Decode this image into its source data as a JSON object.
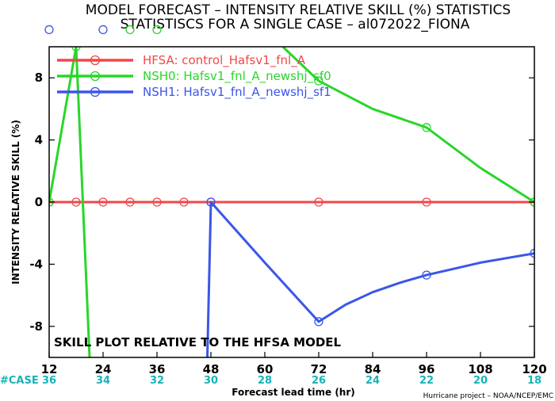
{
  "header": {
    "title_line1": "MODEL FORECAST – INTENSITY RELATIVE SKILL (%) STATISTICS",
    "title_line2": "STATISTISCS FOR A SINGLE CASE – al072022_FIONA"
  },
  "footer": {
    "credit": "Hurricane project – NOAA/NCEP/EMC",
    "case_label": "#CASE"
  },
  "chart_data": {
    "type": "line",
    "title": "MODEL FORECAST – INTENSITY RELATIVE SKILL (%) STATISTICS",
    "subtitle": "STATISTISCS FOR A SINGLE CASE – al072022_FIONA",
    "xlabel": "Forecast lead time (hr)",
    "ylabel": "INTENSITY RELATIVE SKILL (%)",
    "xlim": [
      12,
      120
    ],
    "ylim": [
      -10,
      10
    ],
    "x_ticks": [
      "12",
      "24",
      "36",
      "48",
      "60",
      "72",
      "84",
      "96",
      "108",
      "120"
    ],
    "y_ticks": [
      "8",
      "4",
      "0",
      "-4",
      "-8"
    ],
    "annotation": "SKILL PLOT RELATIVE TO THE HFSA MODEL",
    "legend_position": "top-left",
    "grid": false,
    "case_counts": [
      {
        "x": 12,
        "count": "36"
      },
      {
        "x": 24,
        "count": "34"
      },
      {
        "x": 36,
        "count": "32"
      },
      {
        "x": 48,
        "count": "30"
      },
      {
        "x": 60,
        "count": "28"
      },
      {
        "x": 72,
        "count": "26"
      },
      {
        "x": 84,
        "count": "24"
      },
      {
        "x": 96,
        "count": "22"
      },
      {
        "x": 108,
        "count": "20"
      },
      {
        "x": 120,
        "count": "18"
      }
    ],
    "series": [
      {
        "name": "HFSA: control_Hafsv1_fnl_A",
        "color": "#f04848",
        "points": [
          [
            12,
            0
          ],
          [
            18,
            0
          ],
          [
            24,
            0
          ],
          [
            30,
            0
          ],
          [
            36,
            0
          ],
          [
            42,
            0
          ],
          [
            48,
            0
          ],
          [
            72,
            0
          ],
          [
            96,
            0
          ],
          [
            120,
            0
          ]
        ],
        "markers": [
          [
            12,
            0
          ],
          [
            18,
            0
          ],
          [
            24,
            0
          ],
          [
            30,
            0
          ],
          [
            36,
            0
          ],
          [
            42,
            0
          ],
          [
            48,
            0
          ],
          [
            72,
            0
          ],
          [
            96,
            0
          ],
          [
            120,
            0
          ]
        ]
      },
      {
        "name": "NSH0: Hafsv1_fnl_A_newshj_sf0",
        "color": "#29d629",
        "points": [
          [
            12,
            0
          ],
          [
            18,
            10
          ],
          [
            21,
            -10
          ],
          [
            null,
            null
          ],
          [
            64,
            10
          ],
          [
            72,
            7.8
          ],
          [
            84,
            6
          ],
          [
            96,
            4.8
          ],
          [
            108,
            2.2
          ],
          [
            120,
            0
          ]
        ],
        "markers": [
          [
            12,
            0
          ],
          [
            18,
            10
          ],
          [
            72,
            7.8
          ],
          [
            96,
            4.8
          ],
          [
            120,
            0
          ]
        ],
        "offscale_markers": [
          [
            30,
            11.1
          ],
          [
            36,
            11.1
          ]
        ]
      },
      {
        "name": "NSH1: Hafsv1_fnl_A_newshj_sf1",
        "color": "#3a56e8",
        "points": [
          [
            47.2,
            -10
          ],
          [
            48,
            0
          ],
          [
            60,
            -3.9
          ],
          [
            72,
            -7.7
          ],
          [
            78,
            -6.6
          ],
          [
            84,
            -5.8
          ],
          [
            90,
            -5.2
          ],
          [
            96,
            -4.7
          ],
          [
            108,
            -3.9
          ],
          [
            120,
            -3.3
          ]
        ],
        "markers": [
          [
            48,
            0
          ],
          [
            72,
            -7.7
          ],
          [
            96,
            -4.7
          ],
          [
            120,
            -3.3
          ]
        ],
        "offscale_markers": [
          [
            12,
            11.1
          ],
          [
            24,
            11.1
          ]
        ]
      }
    ]
  }
}
